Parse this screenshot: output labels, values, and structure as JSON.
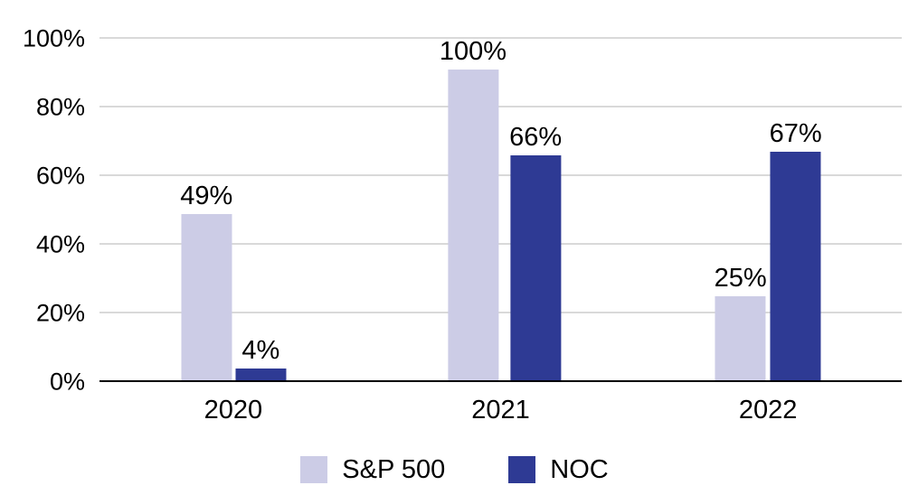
{
  "chart_data": {
    "type": "bar",
    "title": "",
    "xlabel": "",
    "ylabel": "",
    "categories": [
      "2020",
      "2021",
      "2022"
    ],
    "series": [
      {
        "name": "S&P 500",
        "color": "#cccce6",
        "values": [
          49,
          100,
          25
        ]
      },
      {
        "name": "NOC",
        "color": "#2e3a94",
        "values": [
          4,
          66,
          67
        ]
      }
    ],
    "value_labels": [
      [
        "49%",
        "4%"
      ],
      [
        "100%",
        "66%"
      ],
      [
        "25%",
        "67%"
      ]
    ],
    "ylim": [
      0,
      100
    ],
    "yticks": [
      0,
      20,
      40,
      60,
      80,
      100
    ],
    "ytick_labels": [
      "0%",
      "20%",
      "40%",
      "60%",
      "80%",
      "100%"
    ],
    "grid": true,
    "legend_position": "bottom"
  },
  "colors": {
    "grid": "#d9d9d9",
    "axis": "#000000",
    "text": "#000000",
    "background": "#ffffff"
  }
}
